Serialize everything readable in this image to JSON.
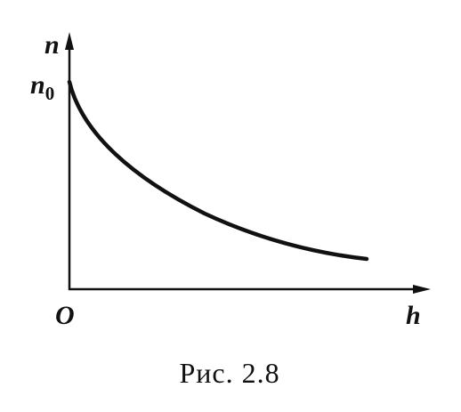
{
  "axes": {
    "y_label": "n",
    "x_label": "h",
    "origin": "O",
    "y_start": {
      "text": "n",
      "subscript": "0"
    }
  },
  "caption": "Рис. 2.8"
}
